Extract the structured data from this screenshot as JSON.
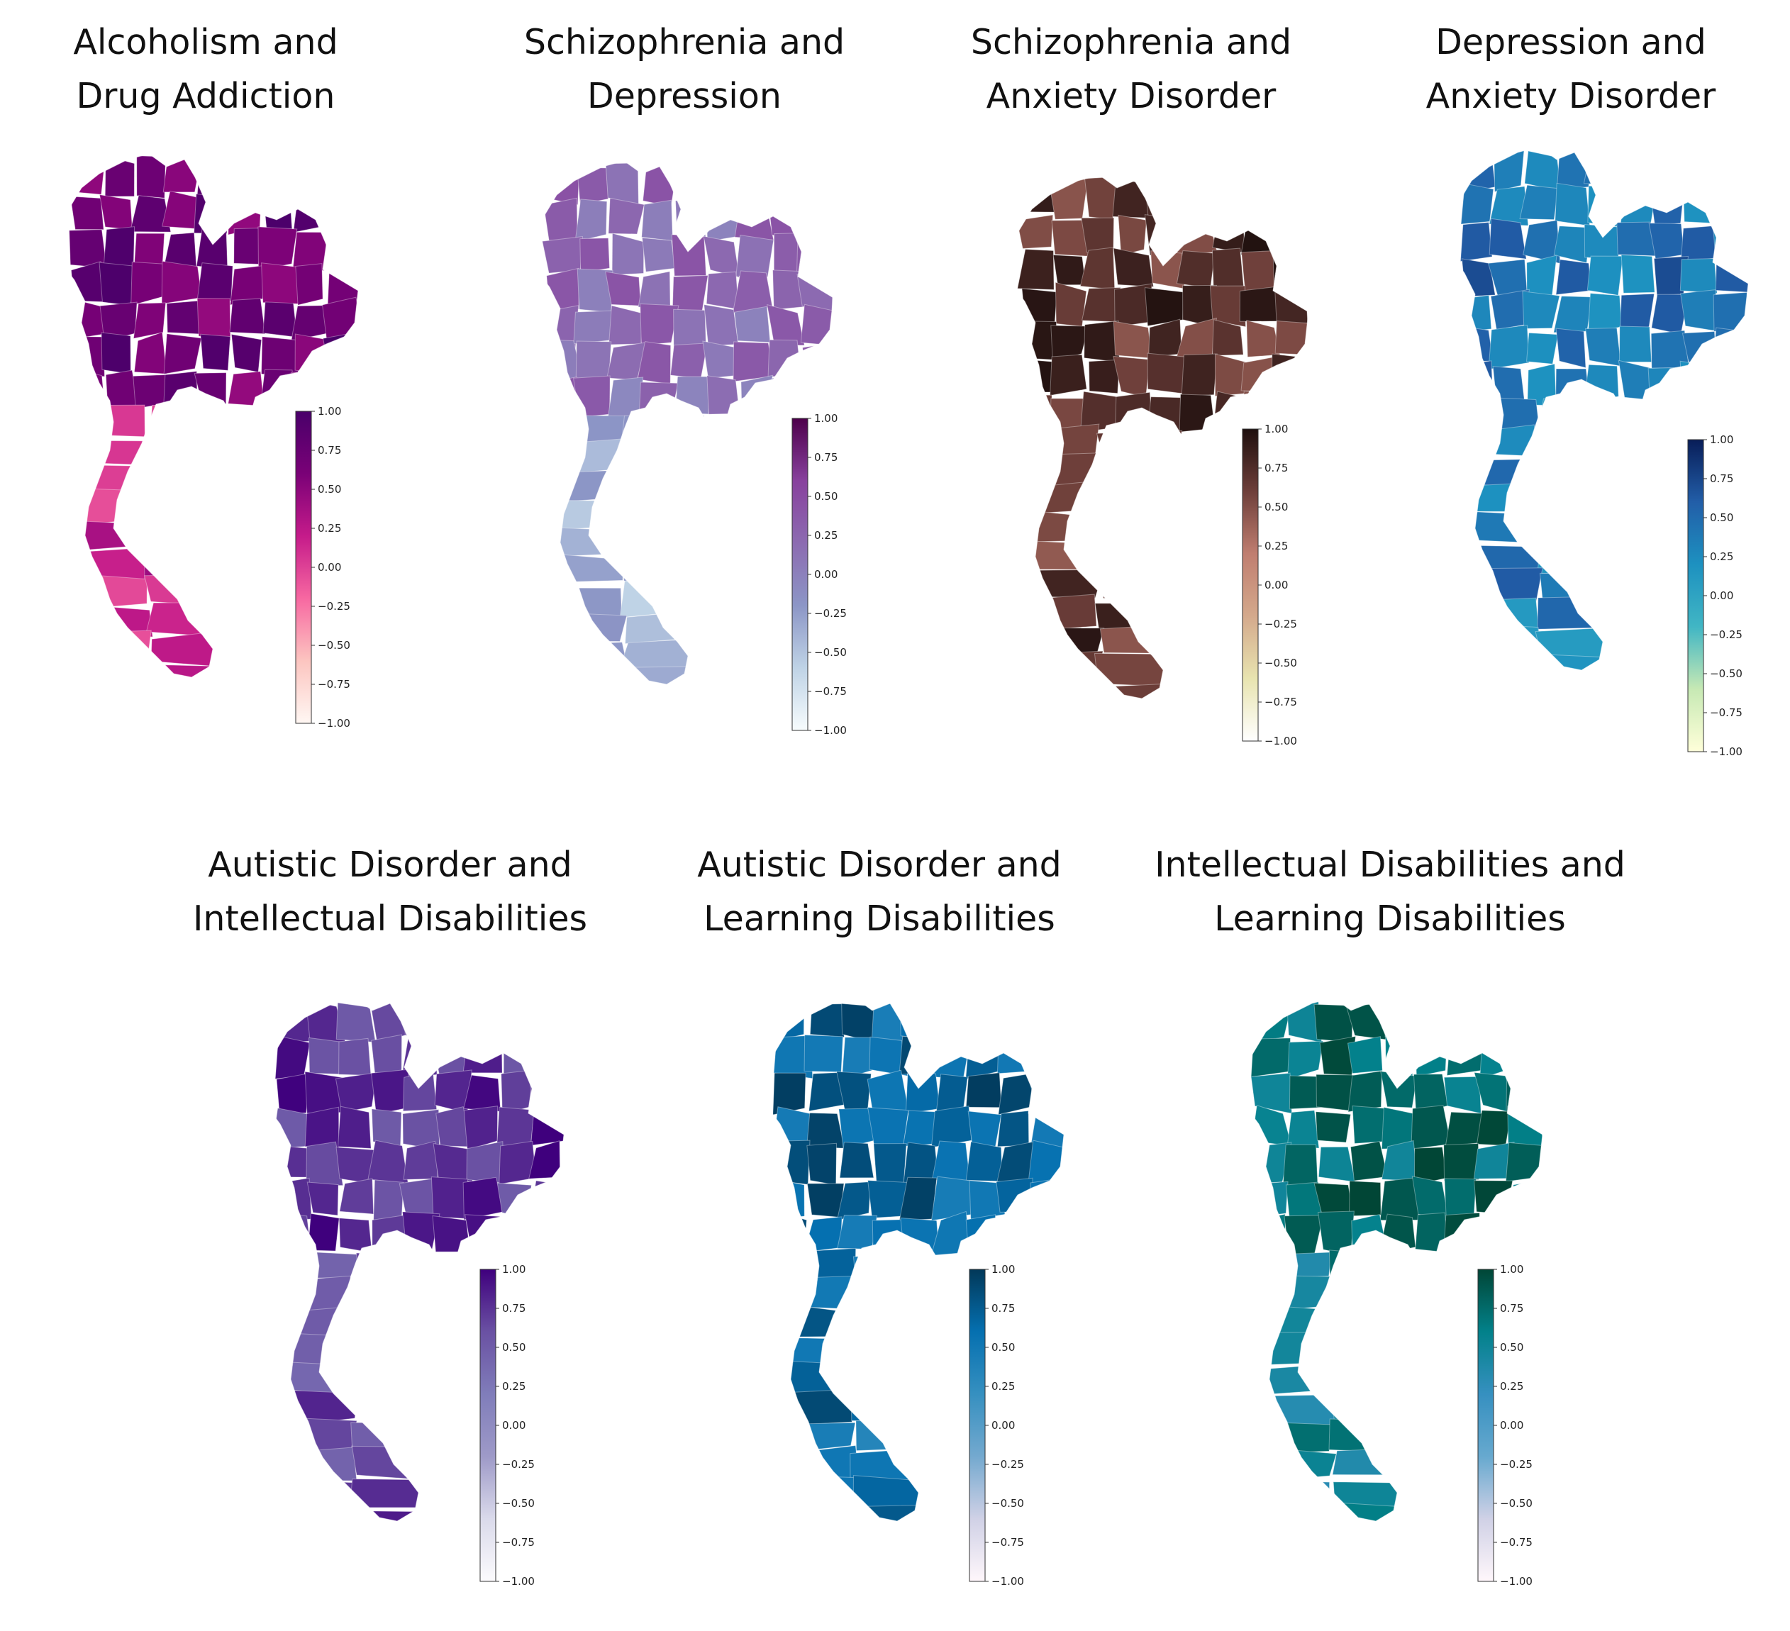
{
  "figure": {
    "panels": [
      {
        "id": "alcoholism-drug",
        "title_line1": "Alcoholism and",
        "title_line2": "Drug Addiction",
        "colormap": "RdPu",
        "colors": [
          "#fff7f3",
          "#fcc5c0",
          "#f768a1",
          "#c51b8a",
          "#7a0177",
          "#49006a"
        ],
        "base_level": 0.72,
        "south_level": 0.15
      },
      {
        "id": "schizophrenia-depression",
        "title_line1": "Schizophrenia and",
        "title_line2": "Depression",
        "colormap": "BuPu",
        "colors": [
          "#f7fcfd",
          "#bfd3e6",
          "#8c96c6",
          "#8c6bb1",
          "#88419d",
          "#4d004b"
        ],
        "base_level": 0.2,
        "south_level": -0.35
      },
      {
        "id": "schizophrenia-anxiety",
        "title_line1": "Schizophrenia and",
        "title_line2": "Anxiety Disorder",
        "colormap": "pink",
        "colors": [
          "#ffffff",
          "#e8e4b0",
          "#d4a98c",
          "#c07e70",
          "#6e3f3a",
          "#1e0f0e"
        ],
        "base_level": 0.72,
        "south_level": 0.7
      },
      {
        "id": "depression-anxiety",
        "title_line1": "Depression and",
        "title_line2": "Anxiety Disorder",
        "colormap": "YlGnBu",
        "colors": [
          "#ffffd9",
          "#c7e9b4",
          "#41b6c4",
          "#1d91c0",
          "#225ea8",
          "#081d58"
        ],
        "base_level": 0.45,
        "south_level": 0.35
      },
      {
        "id": "autistic-intellectual",
        "title_line1": "Autistic Disorder and",
        "title_line2": "Intellectual Disabilities",
        "colormap": "Purples",
        "colors": [
          "#fcfbfd",
          "#dadaeb",
          "#9e9ac8",
          "#807dba",
          "#6a51a3",
          "#3f007d"
        ],
        "base_level": 0.78,
        "south_level": 0.6
      },
      {
        "id": "autistic-learning",
        "title_line1": "Autistic Disorder and",
        "title_line2": "Learning Disabilities",
        "colormap": "PuBu",
        "colors": [
          "#fff7fb",
          "#d0d1e6",
          "#74a9cf",
          "#3690c0",
          "#0570b0",
          "#023858"
        ],
        "base_level": 0.7,
        "south_level": 0.6
      },
      {
        "id": "intellectual-learning",
        "title_line1": "Intellectual Disabilities and",
        "title_line2": "Learning Disabilities",
        "colormap": "PuBuGn",
        "colors": [
          "#fff7fb",
          "#d0d1e6",
          "#67a9cf",
          "#3690c0",
          "#02818a",
          "#014636"
        ],
        "base_level": 0.75,
        "south_level": 0.55
      }
    ],
    "colorbar": {
      "ticks": [
        "1.00",
        "0.75",
        "0.50",
        "0.25",
        "0.00",
        "−0.25",
        "−0.50",
        "−0.75",
        "−1.00"
      ],
      "range": [
        -1,
        1
      ]
    }
  }
}
